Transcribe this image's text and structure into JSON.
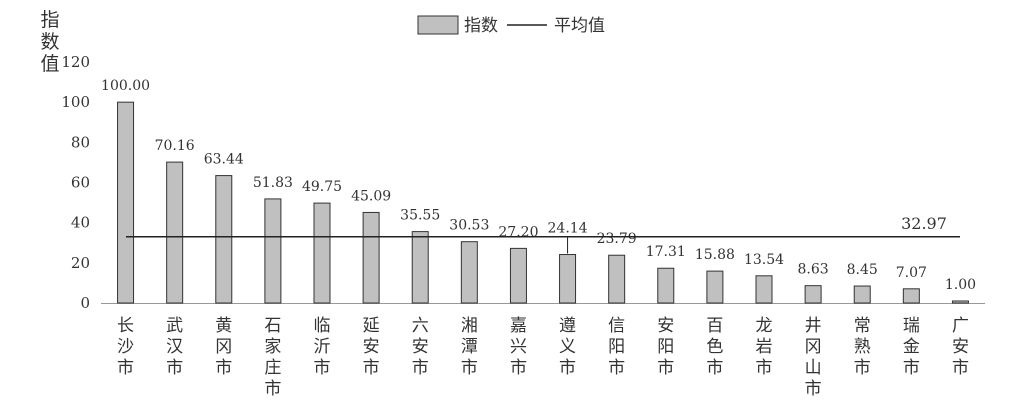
{
  "chart_data": {
    "type": "bar",
    "ylabel": "指数值",
    "ylim": [
      0,
      120
    ],
    "yticks": [
      0,
      20,
      40,
      60,
      80,
      100,
      120
    ],
    "grid": false,
    "legend": {
      "position": "top-center",
      "bar_label": "指数",
      "line_label": "平均值"
    },
    "categories": [
      "长沙市",
      "武汉市",
      "黄冈市",
      "石家庄市",
      "临沂市",
      "延安市",
      "六安市",
      "湘潭市",
      "嘉兴市",
      "遵义市",
      "信阳市",
      "安阳市",
      "百色市",
      "龙岩市",
      "井冈山市",
      "常熟市",
      "瑞金市",
      "广安市"
    ],
    "series": [
      {
        "name": "指数",
        "values": [
          100.0,
          70.16,
          63.44,
          51.83,
          49.75,
          45.09,
          35.55,
          30.53,
          27.2,
          24.14,
          23.79,
          17.31,
          15.88,
          13.54,
          8.63,
          8.45,
          7.07,
          1.0
        ],
        "labels": [
          "100.00",
          "70.16",
          "63.44",
          "51.83",
          "49.75",
          "45.09",
          "35.55",
          "30.53",
          "27.20",
          "24.14",
          "23.79",
          "17.31",
          "15.88",
          "13.54",
          "8.63",
          "8.45",
          "7.07",
          "1.00"
        ]
      }
    ],
    "average": {
      "name": "平均值",
      "value": 32.97,
      "label": "32.97"
    },
    "colors": {
      "bar_fill": "#c0c0c0",
      "bar_stroke": "#333333",
      "line": "#222222",
      "axis": "#999999",
      "text": "#333333"
    }
  }
}
